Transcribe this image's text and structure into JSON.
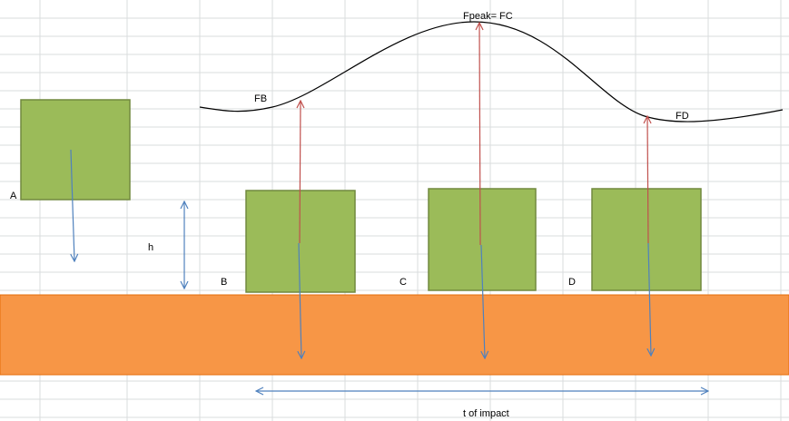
{
  "labels": {
    "a": "A",
    "b": "B",
    "c": "C",
    "d": "D",
    "h": "h",
    "fb": "FB",
    "fc": "Fpeak= FC",
    "fd": "FD",
    "t": "t of impact"
  }
}
